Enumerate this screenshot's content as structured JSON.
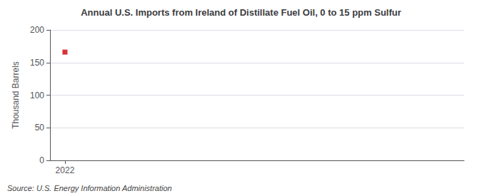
{
  "chart_data": {
    "type": "scatter",
    "title": "Annual U.S. Imports from Ireland of Distillate Fuel Oil, 0 to 15 ppm Sulfur",
    "ylabel": "Thousand Barrels",
    "annotations": [
      "Source: U.S. Energy Information Administration"
    ],
    "x": [
      2022
    ],
    "values": [
      166
    ],
    "color": "#cc0000",
    "marker": "square",
    "xlim": [
      2021.7,
      2030
    ],
    "xticks": [
      2022
    ],
    "ylim": [
      0,
      200
    ],
    "yticks": [
      0,
      50,
      100,
      150,
      200
    ],
    "grid": true
  }
}
